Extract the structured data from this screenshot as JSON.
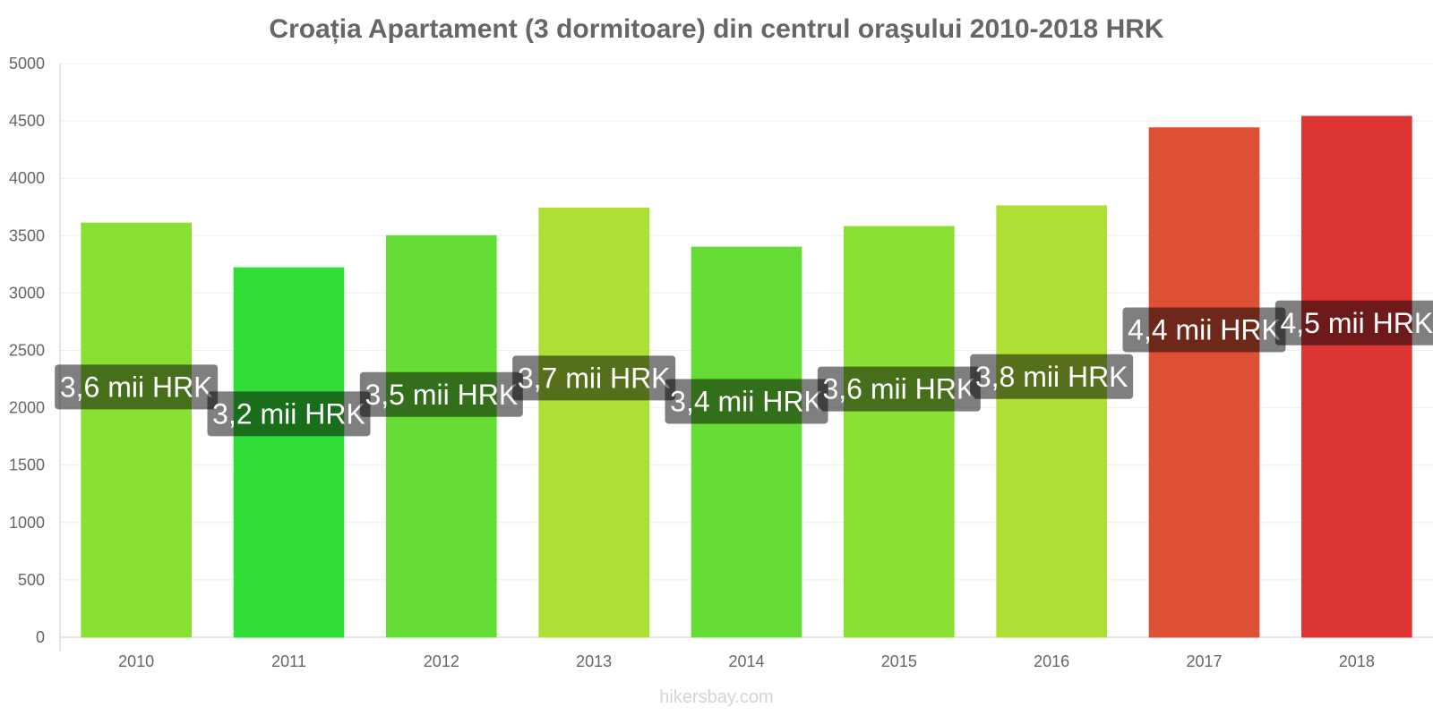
{
  "chart_data": {
    "type": "bar",
    "title": "Croația Apartament (3 dormitoare) din centrul oraşului 2010-2018 HRK",
    "xlabel": "",
    "ylabel": "",
    "categories": [
      "2010",
      "2011",
      "2012",
      "2013",
      "2014",
      "2015",
      "2016",
      "2017",
      "2018"
    ],
    "values": [
      3610,
      3220,
      3500,
      3740,
      3400,
      3580,
      3760,
      4440,
      4540
    ],
    "data_labels": [
      "3,6 mii HRK",
      "3,2 mii HRK",
      "3,5 mii HRK",
      "3,7 mii HRK",
      "3,4 mii HRK",
      "3,6 mii HRK",
      "3,8 mii HRK",
      "4,4 mii HRK",
      "4,5 mii HRK"
    ],
    "bar_colors": [
      "#8adf34",
      "#33dd39",
      "#66dd37",
      "#addf34",
      "#66dd37",
      "#8adf34",
      "#addf34",
      "#dd5034",
      "#dd3434"
    ],
    "ylim": [
      0,
      5000
    ],
    "yticks": [
      0,
      500,
      1000,
      1500,
      2000,
      2500,
      3000,
      3500,
      4000,
      4500,
      5000
    ],
    "grid": true,
    "legend": "none"
  },
  "watermark": "hikersbay.com"
}
